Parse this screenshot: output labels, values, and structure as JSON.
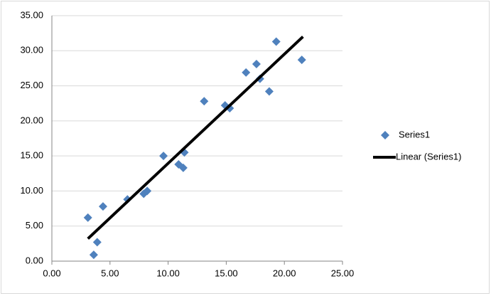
{
  "chart_data": {
    "type": "scatter",
    "series": [
      {
        "name": "Series1",
        "type": "scatter",
        "color": "#4f81bd",
        "x": [
          3.1,
          3.6,
          3.9,
          4.4,
          6.5,
          7.9,
          8.2,
          9.6,
          10.9,
          11.3,
          11.4,
          13.1,
          14.9,
          15.3,
          16.7,
          17.6,
          17.9,
          18.7,
          19.3,
          21.5
        ],
        "values": [
          6.2,
          0.9,
          2.7,
          7.8,
          8.8,
          9.6,
          10.0,
          15.0,
          13.8,
          13.3,
          15.5,
          22.8,
          22.2,
          21.8,
          26.9,
          28.1,
          26.0,
          24.2,
          31.3,
          28.7
        ]
      },
      {
        "name": "Linear (Series1)",
        "type": "line",
        "color": "#000000",
        "x": [
          3.1,
          21.6
        ],
        "values": [
          3.2,
          32.0
        ]
      }
    ],
    "xlim": [
      0,
      25
    ],
    "xticks": [
      {
        "value": 0,
        "label": "0.00"
      },
      {
        "value": 5,
        "label": "5.00"
      },
      {
        "value": 10,
        "label": "10.00"
      },
      {
        "value": 15,
        "label": "15.00"
      },
      {
        "value": 20,
        "label": "20.00"
      },
      {
        "value": 25,
        "label": "25.00"
      }
    ],
    "ylim": [
      0,
      35
    ],
    "yticks": [
      {
        "value": 0,
        "label": "0.00"
      },
      {
        "value": 5,
        "label": "5.00"
      },
      {
        "value": 10,
        "label": "10.00"
      },
      {
        "value": 15,
        "label": "15.00"
      },
      {
        "value": 20,
        "label": "20.00"
      },
      {
        "value": 25,
        "label": "25.00"
      },
      {
        "value": 30,
        "label": "30.00"
      },
      {
        "value": 35,
        "label": "35.00"
      }
    ],
    "grid": true,
    "legend": "right"
  }
}
